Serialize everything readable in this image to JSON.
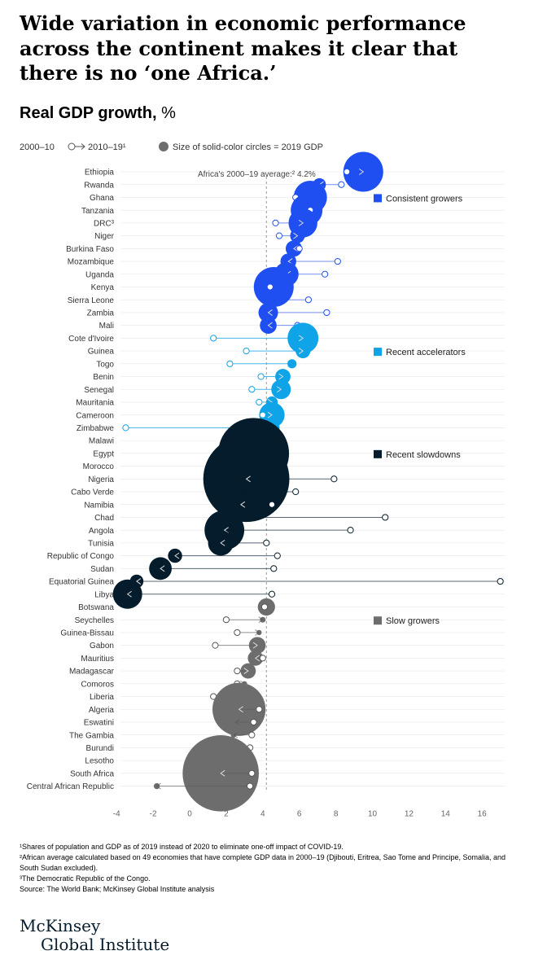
{
  "title": "Wide variation in economic performance across the continent makes it clear that there is no ‘one Africa.’",
  "subtitle": "Real GDP growth,",
  "subtitle_unit": "%",
  "legend": {
    "period1": "2000–10",
    "period2": "2010–19¹",
    "size_note": "Size of solid-color circles = 2019 GDP"
  },
  "colors": {
    "consistent": "#1f4ff0",
    "recent_accelerators": "#0fa3e8",
    "recent_slowdowns": "#051c2c",
    "slow_growers": "#6d6d6d"
  },
  "chart_data": {
    "type": "scatter",
    "title": "Real GDP growth, %",
    "xlabel": "",
    "ylabel": "",
    "xlim": [
      -4,
      17
    ],
    "x_ticks": [
      "-4",
      "-2",
      "0",
      "2",
      "4",
      "6",
      "8",
      "10",
      "12",
      "14",
      "16"
    ],
    "x_tick_values": [
      -4,
      -2,
      0,
      2,
      4,
      6,
      8,
      10,
      12,
      14,
      16
    ],
    "average_value": 4.2,
    "average_label": "Africa's 2000–19 average:² 4.2%",
    "groups": [
      {
        "name": "Consistent growers",
        "color": "#1f4ff0"
      },
      {
        "name": "Recent accelerators",
        "color": "#0fa3e8"
      },
      {
        "name": "Recent slowdowns",
        "color": "#051c2c"
      },
      {
        "name": "Slow growers",
        "color": "#6d6d6d"
      }
    ],
    "countries": [
      {
        "name": "Ethiopia",
        "group": 0,
        "growth_2000_10": 8.6,
        "growth_2010_19": 9.5,
        "gdp_2019": 96
      },
      {
        "name": "Rwanda",
        "group": 0,
        "growth_2000_10": 8.3,
        "growth_2010_19": 7.1,
        "gdp_2019": 10
      },
      {
        "name": "Ghana",
        "group": 0,
        "growth_2000_10": 5.8,
        "growth_2010_19": 6.6,
        "gdp_2019": 67
      },
      {
        "name": "Tanzania",
        "group": 0,
        "growth_2000_10": 6.6,
        "growth_2010_19": 6.4,
        "gdp_2019": 61
      },
      {
        "name": "DRC³",
        "group": 0,
        "growth_2000_10": 4.7,
        "growth_2010_19": 6.2,
        "gdp_2019": 50
      },
      {
        "name": "Niger",
        "group": 0,
        "growth_2000_10": 4.9,
        "growth_2010_19": 5.9,
        "gdp_2019": 13
      },
      {
        "name": "Burkina Faso",
        "group": 0,
        "growth_2000_10": 6.0,
        "growth_2010_19": 5.7,
        "gdp_2019": 16
      },
      {
        "name": "Mozambique",
        "group": 0,
        "growth_2000_10": 8.1,
        "growth_2010_19": 5.4,
        "gdp_2019": 15
      },
      {
        "name": "Uganda",
        "group": 0,
        "growth_2000_10": 7.4,
        "growth_2010_19": 5.3,
        "gdp_2019": 35
      },
      {
        "name": "Kenya",
        "group": 0,
        "growth_2000_10": 4.4,
        "growth_2010_19": 4.6,
        "gdp_2019": 96
      },
      {
        "name": "Sierra Leone",
        "group": 0,
        "growth_2000_10": 6.5,
        "growth_2010_19": 4.4,
        "gdp_2019": 4
      },
      {
        "name": "Zambia",
        "group": 0,
        "growth_2000_10": 7.5,
        "growth_2010_19": 4.3,
        "gdp_2019": 23
      },
      {
        "name": "Mali",
        "group": 0,
        "growth_2000_10": 5.9,
        "growth_2010_19": 4.3,
        "gdp_2019": 17
      },
      {
        "name": "Cote d'Ivoire",
        "group": 1,
        "growth_2000_10": 1.3,
        "growth_2010_19": 6.2,
        "gdp_2019": 58
      },
      {
        "name": "Guinea",
        "group": 1,
        "growth_2000_10": 3.1,
        "growth_2010_19": 6.2,
        "gdp_2019": 13
      },
      {
        "name": "Togo",
        "group": 1,
        "growth_2000_10": 2.2,
        "growth_2010_19": 5.6,
        "gdp_2019": 5
      },
      {
        "name": "Benin",
        "group": 1,
        "growth_2000_10": 3.9,
        "growth_2010_19": 5.1,
        "gdp_2019": 14
      },
      {
        "name": "Senegal",
        "group": 1,
        "growth_2000_10": 3.4,
        "growth_2010_19": 5.0,
        "gdp_2019": 23
      },
      {
        "name": "Mauritania",
        "group": 1,
        "growth_2000_10": 3.8,
        "growth_2010_19": 4.5,
        "gdp_2019": 8
      },
      {
        "name": "Cameroon",
        "group": 1,
        "growth_2000_10": 4.0,
        "growth_2010_19": 4.5,
        "gdp_2019": 39
      },
      {
        "name": "Zimbabwe",
        "group": 1,
        "growth_2000_10": -3.5,
        "growth_2010_19": 4.4,
        "gdp_2019": 22
      },
      {
        "name": "Malawi",
        "group": 2,
        "growth_2000_10": 4.7,
        "growth_2010_19": 4.1,
        "gdp_2019": 8
      },
      {
        "name": "Egypt",
        "group": 2,
        "growth_2000_10": 4.8,
        "growth_2010_19": 3.5,
        "gdp_2019": 303
      },
      {
        "name": "Morocco",
        "group": 2,
        "growth_2000_10": 4.8,
        "growth_2010_19": 3.6,
        "gdp_2019": 120
      },
      {
        "name": "Nigeria",
        "group": 2,
        "growth_2000_10": 7.9,
        "growth_2010_19": 3.1,
        "gdp_2019": 448
      },
      {
        "name": "Cabo Verde",
        "group": 2,
        "growth_2000_10": 5.8,
        "growth_2010_19": 2.9,
        "gdp_2019": 2
      },
      {
        "name": "Namibia",
        "group": 2,
        "growth_2000_10": 4.5,
        "growth_2010_19": 2.8,
        "gdp_2019": 12
      },
      {
        "name": "Chad",
        "group": 2,
        "growth_2000_10": 10.7,
        "growth_2010_19": 2.2,
        "gdp_2019": 11
      },
      {
        "name": "Angola",
        "group": 2,
        "growth_2000_10": 8.8,
        "growth_2010_19": 1.9,
        "gdp_2019": 95
      },
      {
        "name": "Tunisia",
        "group": 2,
        "growth_2000_10": 4.2,
        "growth_2010_19": 1.7,
        "gdp_2019": 39
      },
      {
        "name": "Republic of Congo",
        "group": 2,
        "growth_2000_10": 4.8,
        "growth_2010_19": -0.8,
        "gdp_2019": 12
      },
      {
        "name": "Sudan",
        "group": 2,
        "growth_2000_10": 4.6,
        "growth_2010_19": -1.6,
        "gdp_2019": 31
      },
      {
        "name": "Equatorial Guinea",
        "group": 2,
        "growth_2000_10": 17.0,
        "growth_2010_19": -2.9,
        "gdp_2019": 11
      },
      {
        "name": "Libya",
        "group": 2,
        "growth_2000_10": 4.5,
        "growth_2010_19": -3.4,
        "gdp_2019": 52
      },
      {
        "name": "Botswana",
        "group": 3,
        "growth_2000_10": 4.1,
        "growth_2010_19": 4.2,
        "gdp_2019": 18
      },
      {
        "name": "Seychelles",
        "group": 3,
        "growth_2000_10": 2.0,
        "growth_2010_19": 4.0,
        "gdp_2019": 2
      },
      {
        "name": "Guinea-Bissau",
        "group": 3,
        "growth_2000_10": 2.6,
        "growth_2010_19": 3.8,
        "gdp_2019": 1.5
      },
      {
        "name": "Gabon",
        "group": 3,
        "growth_2000_10": 1.4,
        "growth_2010_19": 3.7,
        "gdp_2019": 17
      },
      {
        "name": "Mauritius",
        "group": 3,
        "growth_2000_10": 4.0,
        "growth_2010_19": 3.6,
        "gdp_2019": 14
      },
      {
        "name": "Madagascar",
        "group": 3,
        "growth_2000_10": 2.6,
        "growth_2010_19": 3.2,
        "gdp_2019": 14
      },
      {
        "name": "Comoros",
        "group": 3,
        "growth_2000_10": 2.6,
        "growth_2010_19": 3.0,
        "gdp_2019": 1.2
      },
      {
        "name": "Liberia",
        "group": 3,
        "growth_2000_10": 1.3,
        "growth_2010_19": 2.6,
        "gdp_2019": 3
      },
      {
        "name": "Algeria",
        "group": 3,
        "growth_2000_10": 3.8,
        "growth_2010_19": 2.7,
        "gdp_2019": 170
      },
      {
        "name": "Eswatini",
        "group": 3,
        "growth_2000_10": 3.5,
        "growth_2010_19": 2.5,
        "gdp_2019": 4.5
      },
      {
        "name": "The Gambia",
        "group": 3,
        "growth_2000_10": 3.4,
        "growth_2010_19": 2.4,
        "gdp_2019": 1.8
      },
      {
        "name": "Burundi",
        "group": 3,
        "growth_2000_10": 3.3,
        "growth_2010_19": 1.9,
        "gdp_2019": 3
      },
      {
        "name": "Lesotho",
        "group": 3,
        "growth_2000_10": 3.2,
        "growth_2010_19": 1.8,
        "gdp_2019": 2.5
      },
      {
        "name": "South Africa",
        "group": 3,
        "growth_2000_10": 3.4,
        "growth_2010_19": 1.7,
        "gdp_2019": 351
      },
      {
        "name": "Central African Republic",
        "group": 3,
        "growth_2000_10": 3.3,
        "growth_2010_19": -1.8,
        "gdp_2019": 2.2
      }
    ]
  },
  "footnotes": [
    "¹Shares of population and GDP as of 2019 instead of 2020 to eliminate one-off impact of COVID-19.",
    "²African average calculated based on 49 economies that have complete GDP data in 2000–19 (Djibouti, Eritrea, Sao Tome and Principe, Somalia, and South Sudan excluded).",
    "³The Democratic Republic of the Congo.",
    "Source: The World Bank; McKinsey Global Institute analysis"
  ],
  "logo": {
    "line1": "McKinsey",
    "line2": "Global Institute"
  }
}
